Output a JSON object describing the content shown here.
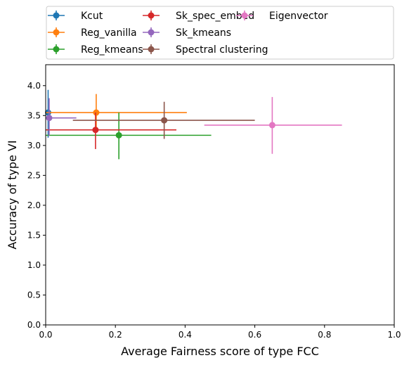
{
  "chart_data": {
    "type": "scatter",
    "xlabel": "Average Fairness score of type FCC",
    "ylabel": "Accuracy of type VI",
    "xlim": [
      0,
      1.0
    ],
    "ylim": [
      0,
      4.35
    ],
    "x_ticks": [
      "0.0",
      "0.2",
      "0.4",
      "0.6",
      "0.8",
      "1.0"
    ],
    "y_ticks": [
      "0.0",
      "0.5",
      "1.0",
      "1.5",
      "2.0",
      "2.5",
      "3.0",
      "3.5",
      "4.0"
    ],
    "x_tick_values": [
      0,
      0.2,
      0.4,
      0.6,
      0.8,
      1.0
    ],
    "y_tick_values": [
      0,
      0.5,
      1.0,
      1.5,
      2.0,
      2.5,
      3.0,
      3.5,
      4.0
    ],
    "grid": false,
    "legend": "top, outside plot, 3 columns",
    "series": [
      {
        "name": "Kcut",
        "color": "#1f77b4",
        "x": 0.007,
        "y": 3.55,
        "xerr": [
          0.007,
          0.007
        ],
        "yerr": [
          0.42,
          0.38
        ]
      },
      {
        "name": "Reg_vanilla",
        "color": "#ff7f0e",
        "x": 0.145,
        "y": 3.55,
        "xerr": [
          0.145,
          0.26
        ],
        "yerr": [
          0.29,
          0.31
        ]
      },
      {
        "name": "Reg_kmeans",
        "color": "#2ca02c",
        "x": 0.21,
        "y": 3.17,
        "xerr": [
          0.21,
          0.265
        ],
        "yerr": [
          0.4,
          0.38
        ]
      },
      {
        "name": "Sk_spec_embed",
        "color": "#d62728",
        "x": 0.143,
        "y": 3.26,
        "xerr": [
          0.143,
          0.232
        ],
        "yerr": [
          0.32,
          0.29
        ]
      },
      {
        "name": "Sk_kmeans",
        "color": "#9467bd",
        "x": 0.01,
        "y": 3.46,
        "xerr": [
          0.01,
          0.078
        ],
        "yerr": [
          0.3,
          0.33
        ]
      },
      {
        "name": "Spectral clustering",
        "color": "#8c564b",
        "x": 0.34,
        "y": 3.42,
        "xerr": [
          0.262,
          0.26
        ],
        "yerr": [
          0.31,
          0.31
        ]
      },
      {
        "name": "Eigenvector",
        "color": "#e377c2",
        "x": 0.65,
        "y": 3.34,
        "xerr": [
          0.195,
          0.2
        ],
        "yerr": [
          0.48,
          0.47
        ]
      }
    ]
  }
}
